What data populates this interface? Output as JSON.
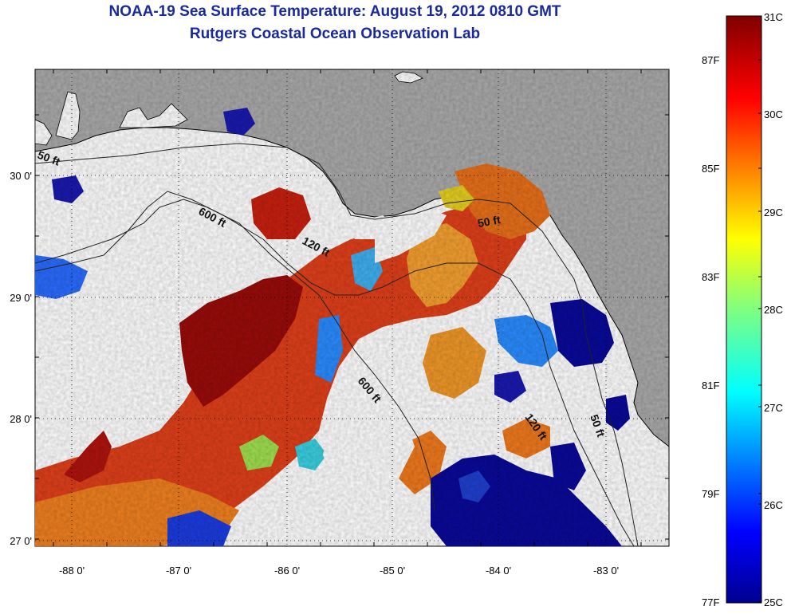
{
  "title": {
    "line1": "NOAA-19 Sea Surface Temperature:  August 19, 2012 0810 GMT",
    "line2": "Rutgers Coastal Ocean Observation Lab"
  },
  "map": {
    "region": "Gulf of Mexico / Florida Big Bend",
    "lon_range": [
      -88.33,
      -82.5
    ],
    "lat_range": [
      26.97,
      30.87
    ],
    "x_tick_labels": [
      "-88 0'",
      "-87 0'",
      "-86 0'",
      "-85 0'",
      "-84 0'",
      "-83 0'"
    ],
    "y_tick_labels": [
      "30 0'",
      "29 0'",
      "28 0'",
      "27 0'"
    ],
    "contour_labels": [
      "50 ft",
      "600 ft",
      "120 ft",
      "50 ft",
      "600 ft",
      "120 ft",
      "50 ft"
    ],
    "colors": {
      "land": "#aaaaaa",
      "no_data": "#ffffff",
      "warm": "#c81e10",
      "hot": "#8a0a08",
      "mid": "#f07a1e",
      "cool": "#2a8cff",
      "cold": "#0a0a9a"
    }
  },
  "colorbar": {
    "celsius_labels": [
      "31C",
      "30C",
      "29C",
      "28C",
      "27C",
      "26C",
      "25C"
    ],
    "fahrenheit_labels": [
      "87F",
      "85F",
      "83F",
      "81F",
      "79F",
      "77F"
    ],
    "range_c": [
      25,
      31
    ],
    "colormap": "jet"
  }
}
